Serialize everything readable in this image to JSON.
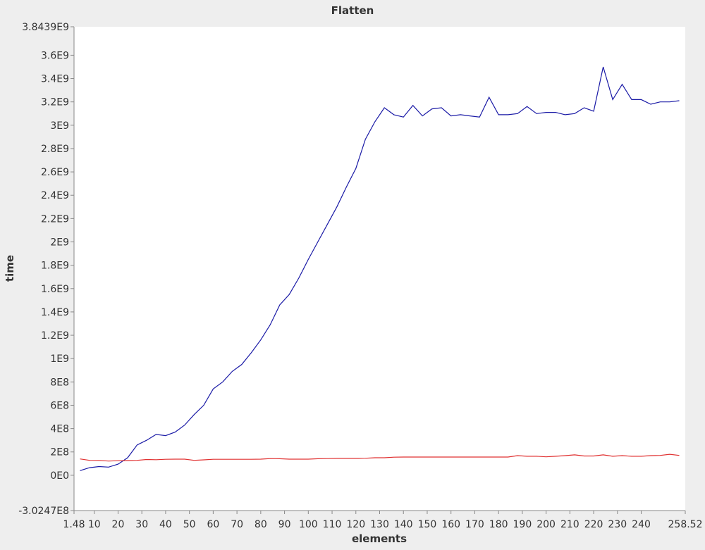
{
  "chart_data": {
    "type": "line",
    "title": "Flatten",
    "xlabel": "elements",
    "ylabel": "time",
    "xlim": [
      1.48,
      258.52
    ],
    "ylim": [
      -302470000,
      3843900000
    ],
    "x_ticks": [
      {
        "value": 1.48,
        "label": "1.48"
      },
      {
        "value": 10,
        "label": "10"
      },
      {
        "value": 20,
        "label": "20"
      },
      {
        "value": 30,
        "label": "30"
      },
      {
        "value": 40,
        "label": "40"
      },
      {
        "value": 50,
        "label": "50"
      },
      {
        "value": 60,
        "label": "60"
      },
      {
        "value": 70,
        "label": "70"
      },
      {
        "value": 80,
        "label": "80"
      },
      {
        "value": 90,
        "label": "90"
      },
      {
        "value": 100,
        "label": "100"
      },
      {
        "value": 110,
        "label": "110"
      },
      {
        "value": 120,
        "label": "120"
      },
      {
        "value": 130,
        "label": "130"
      },
      {
        "value": 140,
        "label": "140"
      },
      {
        "value": 150,
        "label": "150"
      },
      {
        "value": 160,
        "label": "160"
      },
      {
        "value": 170,
        "label": "170"
      },
      {
        "value": 180,
        "label": "180"
      },
      {
        "value": 190,
        "label": "190"
      },
      {
        "value": 200,
        "label": "200"
      },
      {
        "value": 210,
        "label": "210"
      },
      {
        "value": 220,
        "label": "220"
      },
      {
        "value": 230,
        "label": "230"
      },
      {
        "value": 240,
        "label": "240"
      },
      {
        "value": 258.52,
        "label": "258.52"
      }
    ],
    "y_ticks": [
      {
        "value": -302470000,
        "label": "-3.0247E8"
      },
      {
        "value": 0,
        "label": "0E0"
      },
      {
        "value": 200000000,
        "label": "2E8"
      },
      {
        "value": 400000000,
        "label": "4E8"
      },
      {
        "value": 600000000,
        "label": "6E8"
      },
      {
        "value": 800000000,
        "label": "8E8"
      },
      {
        "value": 1000000000,
        "label": "1E9"
      },
      {
        "value": 1200000000,
        "label": "1.2E9"
      },
      {
        "value": 1400000000,
        "label": "1.4E9"
      },
      {
        "value": 1600000000,
        "label": "1.6E9"
      },
      {
        "value": 1800000000,
        "label": "1.8E9"
      },
      {
        "value": 2000000000,
        "label": "2E9"
      },
      {
        "value": 2200000000,
        "label": "2.2E9"
      },
      {
        "value": 2400000000,
        "label": "2.4E9"
      },
      {
        "value": 2600000000,
        "label": "2.6E9"
      },
      {
        "value": 2800000000,
        "label": "2.8E9"
      },
      {
        "value": 3000000000,
        "label": "3E9"
      },
      {
        "value": 3200000000,
        "label": "3.2E9"
      },
      {
        "value": 3400000000,
        "label": "3.4E9"
      },
      {
        "value": 3600000000,
        "label": "3.6E9"
      },
      {
        "value": 3843900000,
        "label": "3.8439E9"
      }
    ],
    "grid": false,
    "legend": "none",
    "x": [
      4,
      8,
      12,
      16,
      20,
      24,
      28,
      32,
      36,
      40,
      44,
      48,
      52,
      56,
      60,
      64,
      68,
      72,
      76,
      80,
      84,
      88,
      92,
      96,
      100,
      104,
      108,
      112,
      116,
      120,
      124,
      128,
      132,
      136,
      140,
      144,
      148,
      152,
      156,
      160,
      164,
      168,
      172,
      176,
      180,
      184,
      188,
      192,
      196,
      200,
      204,
      208,
      212,
      216,
      220,
      224,
      228,
      232,
      236,
      240,
      244,
      248,
      252,
      256
    ],
    "series": [
      {
        "color": "#1a1aa6",
        "values": [
          40000000,
          65000000,
          75000000,
          70000000,
          95000000,
          150000000,
          260000000,
          300000000,
          350000000,
          340000000,
          370000000,
          430000000,
          520000000,
          600000000,
          740000000,
          800000000,
          890000000,
          950000000,
          1050000000,
          1160000000,
          1290000000,
          1460000000,
          1550000000,
          1690000000,
          1850000000,
          2000000000,
          2150000000,
          2300000000,
          2470000000,
          2630000000,
          2880000000,
          3030000000,
          3150000000,
          3090000000,
          3070000000,
          3170000000,
          3080000000,
          3140000000,
          3150000000,
          3080000000,
          3090000000,
          3080000000,
          3070000000,
          3240000000,
          3090000000,
          3090000000,
          3100000000,
          3160000000,
          3100000000,
          3110000000,
          3110000000,
          3090000000,
          3100000000,
          3150000000,
          3120000000,
          3500000000,
          3220000000,
          3350000000,
          3220000000,
          3220000000,
          3180000000,
          3200000000,
          3200000000,
          3210000000
        ]
      },
      {
        "color": "#e03030",
        "values": [
          140000000,
          128000000,
          127000000,
          122000000,
          125000000,
          126000000,
          128000000,
          135000000,
          133000000,
          137000000,
          138000000,
          138000000,
          128000000,
          132000000,
          137000000,
          137000000,
          137000000,
          137000000,
          137000000,
          138000000,
          143000000,
          142000000,
          138000000,
          138000000,
          138000000,
          142000000,
          143000000,
          145000000,
          145000000,
          145000000,
          146000000,
          150000000,
          150000000,
          155000000,
          156000000,
          156000000,
          156000000,
          156000000,
          156000000,
          156000000,
          156000000,
          156000000,
          156000000,
          156000000,
          156000000,
          156000000,
          168000000,
          163000000,
          163000000,
          158000000,
          163000000,
          168000000,
          175000000,
          165000000,
          165000000,
          175000000,
          163000000,
          168000000,
          163000000,
          163000000,
          168000000,
          170000000,
          180000000,
          170000000
        ]
      }
    ]
  }
}
